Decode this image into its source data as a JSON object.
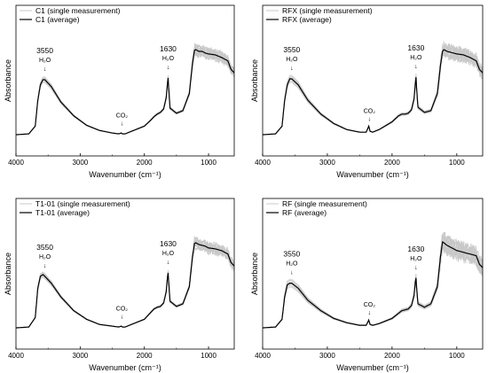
{
  "chart_data": [
    {
      "type": "line",
      "title": "",
      "xlabel": "Wavenumber (cm⁻¹)",
      "ylabel": "Absorbance",
      "xlim": [
        4000,
        600
      ],
      "x_reversed": true,
      "xticks": [
        4000,
        3000,
        2000,
        1000
      ],
      "y_ticks_shown": false,
      "grid": false,
      "legend_position": "top-left",
      "series": [
        {
          "name": "C1 (single measurement)",
          "color": "#c8c8c8",
          "kind": "single"
        },
        {
          "name": "C1 (average)",
          "color": "#000000",
          "kind": "average"
        }
      ],
      "annotations": [
        {
          "label": "3550",
          "sub": "H₂O",
          "x": 3550
        },
        {
          "label": "CO₂",
          "x": 2350,
          "small": true
        },
        {
          "label": "1630",
          "sub": "H₂O",
          "x": 1630
        }
      ],
      "curve": {
        "x": [
          4000,
          3800,
          3700,
          3660,
          3620,
          3580,
          3550,
          3450,
          3300,
          3100,
          2900,
          2700,
          2500,
          2400,
          2360,
          2340,
          2300,
          2200,
          2000,
          1900,
          1850,
          1800,
          1750,
          1700,
          1660,
          1640,
          1630,
          1620,
          1600,
          1500,
          1400,
          1300,
          1250,
          1220,
          1200,
          1150,
          1100,
          1050,
          1000,
          900,
          800,
          700,
          650,
          600
        ],
        "y": [
          0.02,
          0.03,
          0.12,
          0.42,
          0.6,
          0.66,
          0.66,
          0.58,
          0.4,
          0.24,
          0.13,
          0.07,
          0.04,
          0.03,
          0.04,
          0.03,
          0.03,
          0.06,
          0.12,
          0.19,
          0.23,
          0.26,
          0.28,
          0.32,
          0.45,
          0.62,
          0.68,
          0.55,
          0.33,
          0.27,
          0.3,
          0.5,
          0.85,
          1.0,
          1.01,
          0.99,
          0.99,
          0.97,
          0.96,
          0.95,
          0.92,
          0.88,
          0.78,
          0.74
        ]
      },
      "spread": 0.04
    },
    {
      "type": "line",
      "title": "",
      "xlabel": "Wavenumber (cm⁻¹)",
      "ylabel": "Absorbance",
      "xlim": [
        4000,
        600
      ],
      "x_reversed": true,
      "xticks": [
        4000,
        3000,
        2000,
        1000
      ],
      "y_ticks_shown": false,
      "grid": false,
      "legend_position": "top-left",
      "series": [
        {
          "name": "RFX (single measurement)",
          "color": "#c8c8c8",
          "kind": "single"
        },
        {
          "name": "RFX (average)",
          "color": "#000000",
          "kind": "average"
        }
      ],
      "annotations": [
        {
          "label": "3550",
          "sub": "H₂O",
          "x": 3550
        },
        {
          "label": "CO₂",
          "x": 2350,
          "small": true
        },
        {
          "label": "1630",
          "sub": "H₂O",
          "x": 1630
        }
      ],
      "curve": {
        "x": [
          4000,
          3800,
          3700,
          3660,
          3620,
          3580,
          3550,
          3450,
          3300,
          3100,
          2900,
          2700,
          2500,
          2400,
          2360,
          2340,
          2300,
          2200,
          2000,
          1900,
          1850,
          1800,
          1750,
          1700,
          1660,
          1640,
          1630,
          1620,
          1600,
          1500,
          1400,
          1300,
          1250,
          1220,
          1200,
          1150,
          1100,
          1050,
          1000,
          900,
          800,
          700,
          650,
          600
        ],
        "y": [
          0.02,
          0.03,
          0.12,
          0.42,
          0.6,
          0.67,
          0.67,
          0.6,
          0.42,
          0.26,
          0.15,
          0.08,
          0.05,
          0.05,
          0.12,
          0.06,
          0.05,
          0.08,
          0.17,
          0.24,
          0.26,
          0.26,
          0.27,
          0.31,
          0.44,
          0.62,
          0.69,
          0.55,
          0.34,
          0.28,
          0.3,
          0.5,
          0.84,
          0.99,
          1.01,
          0.99,
          0.98,
          0.97,
          0.96,
          0.95,
          0.92,
          0.88,
          0.78,
          0.74
        ]
      },
      "spread": 0.05
    },
    {
      "type": "line",
      "title": "",
      "xlabel": "Wavenumber (cm⁻¹)",
      "ylabel": "Absorbance",
      "xlim": [
        4000,
        600
      ],
      "x_reversed": true,
      "xticks": [
        4000,
        3000,
        2000,
        1000
      ],
      "y_ticks_shown": false,
      "grid": false,
      "legend_position": "top-left",
      "series": [
        {
          "name": "T1-01 (single measurement)",
          "color": "#c8c8c8",
          "kind": "single"
        },
        {
          "name": "T1-01 (average)",
          "color": "#000000",
          "kind": "average"
        }
      ],
      "annotations": [
        {
          "label": "3550",
          "sub": "H₂O",
          "x": 3550
        },
        {
          "label": "CO₂",
          "x": 2350,
          "small": true
        },
        {
          "label": "1630",
          "sub": "H₂O",
          "x": 1630
        }
      ],
      "curve": {
        "x": [
          4000,
          3800,
          3700,
          3660,
          3620,
          3580,
          3550,
          3450,
          3300,
          3100,
          2900,
          2700,
          2500,
          2400,
          2360,
          2340,
          2300,
          2200,
          2000,
          1900,
          1850,
          1800,
          1750,
          1700,
          1660,
          1640,
          1630,
          1620,
          1600,
          1500,
          1400,
          1300,
          1250,
          1220,
          1200,
          1150,
          1100,
          1050,
          1000,
          900,
          800,
          700,
          650,
          600
        ],
        "y": [
          0.02,
          0.03,
          0.14,
          0.48,
          0.62,
          0.64,
          0.62,
          0.54,
          0.38,
          0.22,
          0.12,
          0.06,
          0.04,
          0.03,
          0.04,
          0.03,
          0.03,
          0.06,
          0.12,
          0.2,
          0.24,
          0.26,
          0.27,
          0.31,
          0.44,
          0.61,
          0.66,
          0.54,
          0.33,
          0.27,
          0.3,
          0.5,
          0.85,
          1.0,
          1.01,
          0.99,
          0.98,
          0.97,
          0.95,
          0.94,
          0.92,
          0.88,
          0.78,
          0.74
        ]
      },
      "spread": 0.04
    },
    {
      "type": "line",
      "title": "",
      "xlabel": "Wavenumber (cm⁻¹)",
      "ylabel": "Absorbance",
      "xlim": [
        4000,
        600
      ],
      "x_reversed": true,
      "xticks": [
        4000,
        3000,
        2000,
        1000
      ],
      "y_ticks_shown": false,
      "grid": false,
      "legend_position": "top-left",
      "series": [
        {
          "name": "RF (single measurement)",
          "color": "#c8c8c8",
          "kind": "single"
        },
        {
          "name": "RF (average)",
          "color": "#000000",
          "kind": "average"
        }
      ],
      "annotations": [
        {
          "label": "3550",
          "sub": "H₂O",
          "x": 3550
        },
        {
          "label": "CO₂",
          "x": 2350,
          "small": true
        },
        {
          "label": "1630",
          "sub": "H₂O",
          "x": 1630
        }
      ],
      "curve": {
        "x": [
          4000,
          3800,
          3700,
          3660,
          3620,
          3580,
          3550,
          3450,
          3300,
          3100,
          2900,
          2700,
          2500,
          2400,
          2360,
          2340,
          2300,
          2200,
          2000,
          1900,
          1850,
          1800,
          1750,
          1700,
          1660,
          1640,
          1630,
          1620,
          1600,
          1500,
          1400,
          1300,
          1250,
          1220,
          1200,
          1150,
          1100,
          1050,
          1000,
          900,
          800,
          700,
          650,
          600
        ],
        "y": [
          0.02,
          0.03,
          0.12,
          0.38,
          0.52,
          0.54,
          0.54,
          0.48,
          0.34,
          0.22,
          0.13,
          0.08,
          0.05,
          0.05,
          0.11,
          0.06,
          0.05,
          0.07,
          0.13,
          0.19,
          0.22,
          0.23,
          0.24,
          0.28,
          0.4,
          0.56,
          0.6,
          0.48,
          0.3,
          0.26,
          0.3,
          0.5,
          0.86,
          1.02,
          1.01,
          0.98,
          0.96,
          0.94,
          0.92,
          0.9,
          0.88,
          0.86,
          0.76,
          0.72
        ]
      },
      "spread": 0.07
    }
  ]
}
